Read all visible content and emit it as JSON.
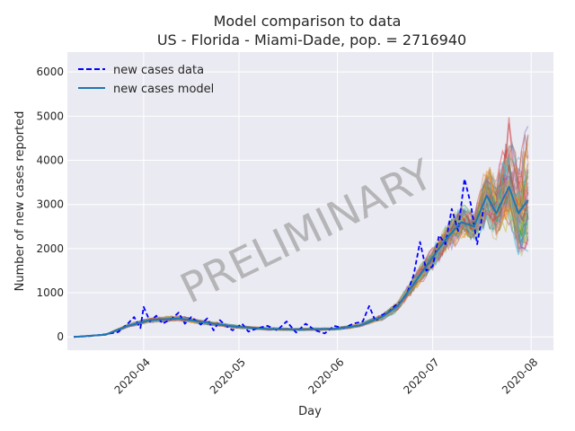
{
  "chart_data": {
    "type": "line",
    "title": "Model comparison to data",
    "subtitle": "US - Florida - Miami-Dade, pop. = 2716940",
    "xlabel": "Day",
    "ylabel": "Number of new cases reported",
    "xlim": [
      "2020-03-08",
      "2020-08-08"
    ],
    "ylim": [
      -300,
      6450
    ],
    "x_ticks": [
      "2020-04",
      "2020-05",
      "2020-06",
      "2020-07",
      "2020-08"
    ],
    "y_ticks": [
      0,
      1000,
      2000,
      3000,
      4000,
      5000,
      6000
    ],
    "grid": true,
    "legend_position": "top-left",
    "watermark": "PRELIMINARY",
    "legend": [
      {
        "label": "new cases data",
        "style": "dashed",
        "color": "#0000ff"
      },
      {
        "label": "new cases model",
        "style": "solid",
        "color": "#1f77b4"
      }
    ],
    "series": [
      {
        "name": "new cases data",
        "color": "#0000ff",
        "style": "dashed",
        "points": [
          [
            "2020-03-10",
            0
          ],
          [
            "2020-03-15",
            20
          ],
          [
            "2020-03-20",
            60
          ],
          [
            "2020-03-24",
            110
          ],
          [
            "2020-03-27",
            300
          ],
          [
            "2020-03-29",
            450
          ],
          [
            "2020-03-31",
            200
          ],
          [
            "2020-04-01",
            680
          ],
          [
            "2020-04-03",
            350
          ],
          [
            "2020-04-05",
            480
          ],
          [
            "2020-04-07",
            300
          ],
          [
            "2020-04-10",
            420
          ],
          [
            "2020-04-12",
            550
          ],
          [
            "2020-04-14",
            300
          ],
          [
            "2020-04-16",
            450
          ],
          [
            "2020-04-19",
            280
          ],
          [
            "2020-04-21",
            420
          ],
          [
            "2020-04-23",
            150
          ],
          [
            "2020-04-25",
            380
          ],
          [
            "2020-04-27",
            250
          ],
          [
            "2020-04-29",
            150
          ],
          [
            "2020-05-02",
            300
          ],
          [
            "2020-05-04",
            120
          ],
          [
            "2020-05-07",
            200
          ],
          [
            "2020-05-10",
            250
          ],
          [
            "2020-05-13",
            150
          ],
          [
            "2020-05-16",
            350
          ],
          [
            "2020-05-19",
            100
          ],
          [
            "2020-05-22",
            300
          ],
          [
            "2020-05-25",
            150
          ],
          [
            "2020-05-28",
            80
          ],
          [
            "2020-05-31",
            250
          ],
          [
            "2020-06-03",
            200
          ],
          [
            "2020-06-06",
            300
          ],
          [
            "2020-06-09",
            350
          ],
          [
            "2020-06-11",
            700
          ],
          [
            "2020-06-13",
            350
          ],
          [
            "2020-06-15",
            500
          ],
          [
            "2020-06-17",
            550
          ],
          [
            "2020-06-19",
            700
          ],
          [
            "2020-06-21",
            800
          ],
          [
            "2020-06-23",
            1000
          ],
          [
            "2020-06-25",
            1400
          ],
          [
            "2020-06-27",
            2150
          ],
          [
            "2020-06-29",
            1500
          ],
          [
            "2020-07-01",
            1600
          ],
          [
            "2020-07-03",
            2300
          ],
          [
            "2020-07-05",
            2100
          ],
          [
            "2020-07-07",
            2900
          ],
          [
            "2020-07-09",
            2400
          ],
          [
            "2020-07-11",
            3580
          ],
          [
            "2020-07-13",
            3000
          ],
          [
            "2020-07-15",
            2100
          ],
          [
            "2020-07-17",
            2900
          ]
        ]
      },
      {
        "name": "new cases model",
        "color": "#1f77b4",
        "style": "solid",
        "points": [
          [
            "2020-03-10",
            0
          ],
          [
            "2020-03-20",
            50
          ],
          [
            "2020-03-27",
            250
          ],
          [
            "2020-04-03",
            380
          ],
          [
            "2020-04-12",
            420
          ],
          [
            "2020-04-20",
            330
          ],
          [
            "2020-04-30",
            230
          ],
          [
            "2020-05-10",
            180
          ],
          [
            "2020-05-20",
            170
          ],
          [
            "2020-05-31",
            180
          ],
          [
            "2020-06-08",
            260
          ],
          [
            "2020-06-15",
            450
          ],
          [
            "2020-06-20",
            700
          ],
          [
            "2020-06-25",
            1200
          ],
          [
            "2020-06-30",
            1700
          ],
          [
            "2020-07-05",
            2200
          ],
          [
            "2020-07-10",
            2600
          ],
          [
            "2020-07-14",
            2500
          ],
          [
            "2020-07-18",
            3200
          ],
          [
            "2020-07-21",
            2800
          ],
          [
            "2020-07-25",
            3400
          ],
          [
            "2020-07-28",
            2800
          ],
          [
            "2020-07-31",
            3100
          ]
        ]
      }
    ]
  }
}
